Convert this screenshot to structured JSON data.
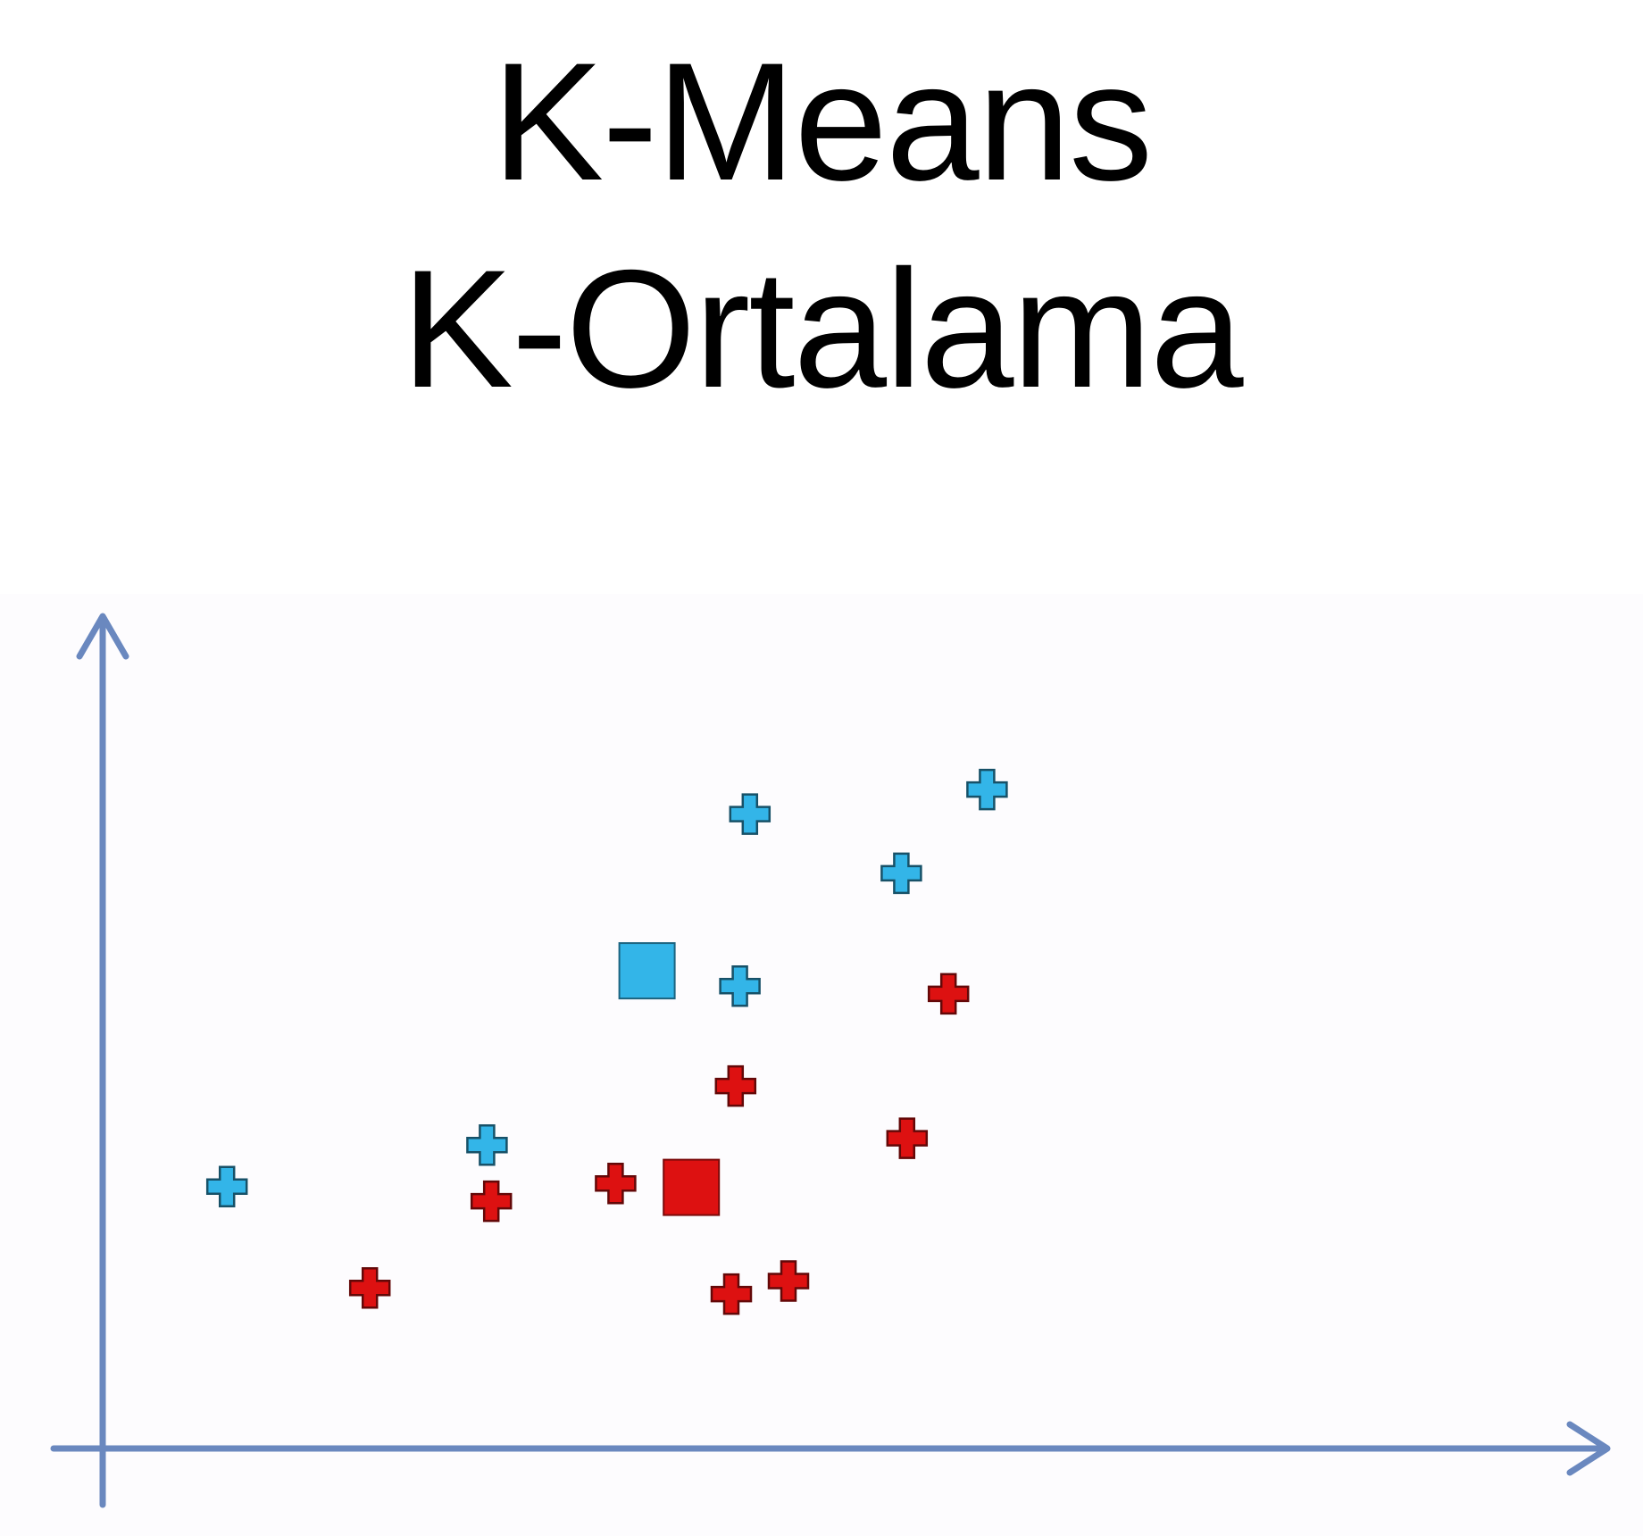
{
  "title_lines": [
    "K-Means",
    "K-Ortalama"
  ],
  "chart_data": {
    "type": "scatter",
    "title": "K-Means K-Ortalama",
    "xlabel": "",
    "ylabel": "",
    "xlim": [
      0,
      100
    ],
    "ylim": [
      0,
      100
    ],
    "grid": false,
    "legend": "none",
    "axis_color": "#6a88bf",
    "series": [
      {
        "marker": "plus",
        "color": "#33b5e8",
        "points": [
          [
            45.3,
            82.6
          ],
          [
            61.9,
            85.8
          ],
          [
            55.9,
            74.9
          ],
          [
            44.6,
            60.2
          ],
          [
            26.9,
            39.5
          ],
          [
            8.7,
            34.1
          ]
        ]
      },
      {
        "marker": "plus",
        "color": "#dd1111",
        "points": [
          [
            59.2,
            59.2
          ],
          [
            44.3,
            47.2
          ],
          [
            56.3,
            40.4
          ],
          [
            35.9,
            34.5
          ],
          [
            27.2,
            32.2
          ],
          [
            18.7,
            20.9
          ],
          [
            44.0,
            20.1
          ],
          [
            48.0,
            21.8
          ]
        ]
      }
    ],
    "centroids": [
      {
        "x": 38.1,
        "y": 62.2,
        "color": "#33b5e8"
      },
      {
        "x": 41.2,
        "y": 34.0,
        "color": "#dd1111"
      }
    ]
  }
}
